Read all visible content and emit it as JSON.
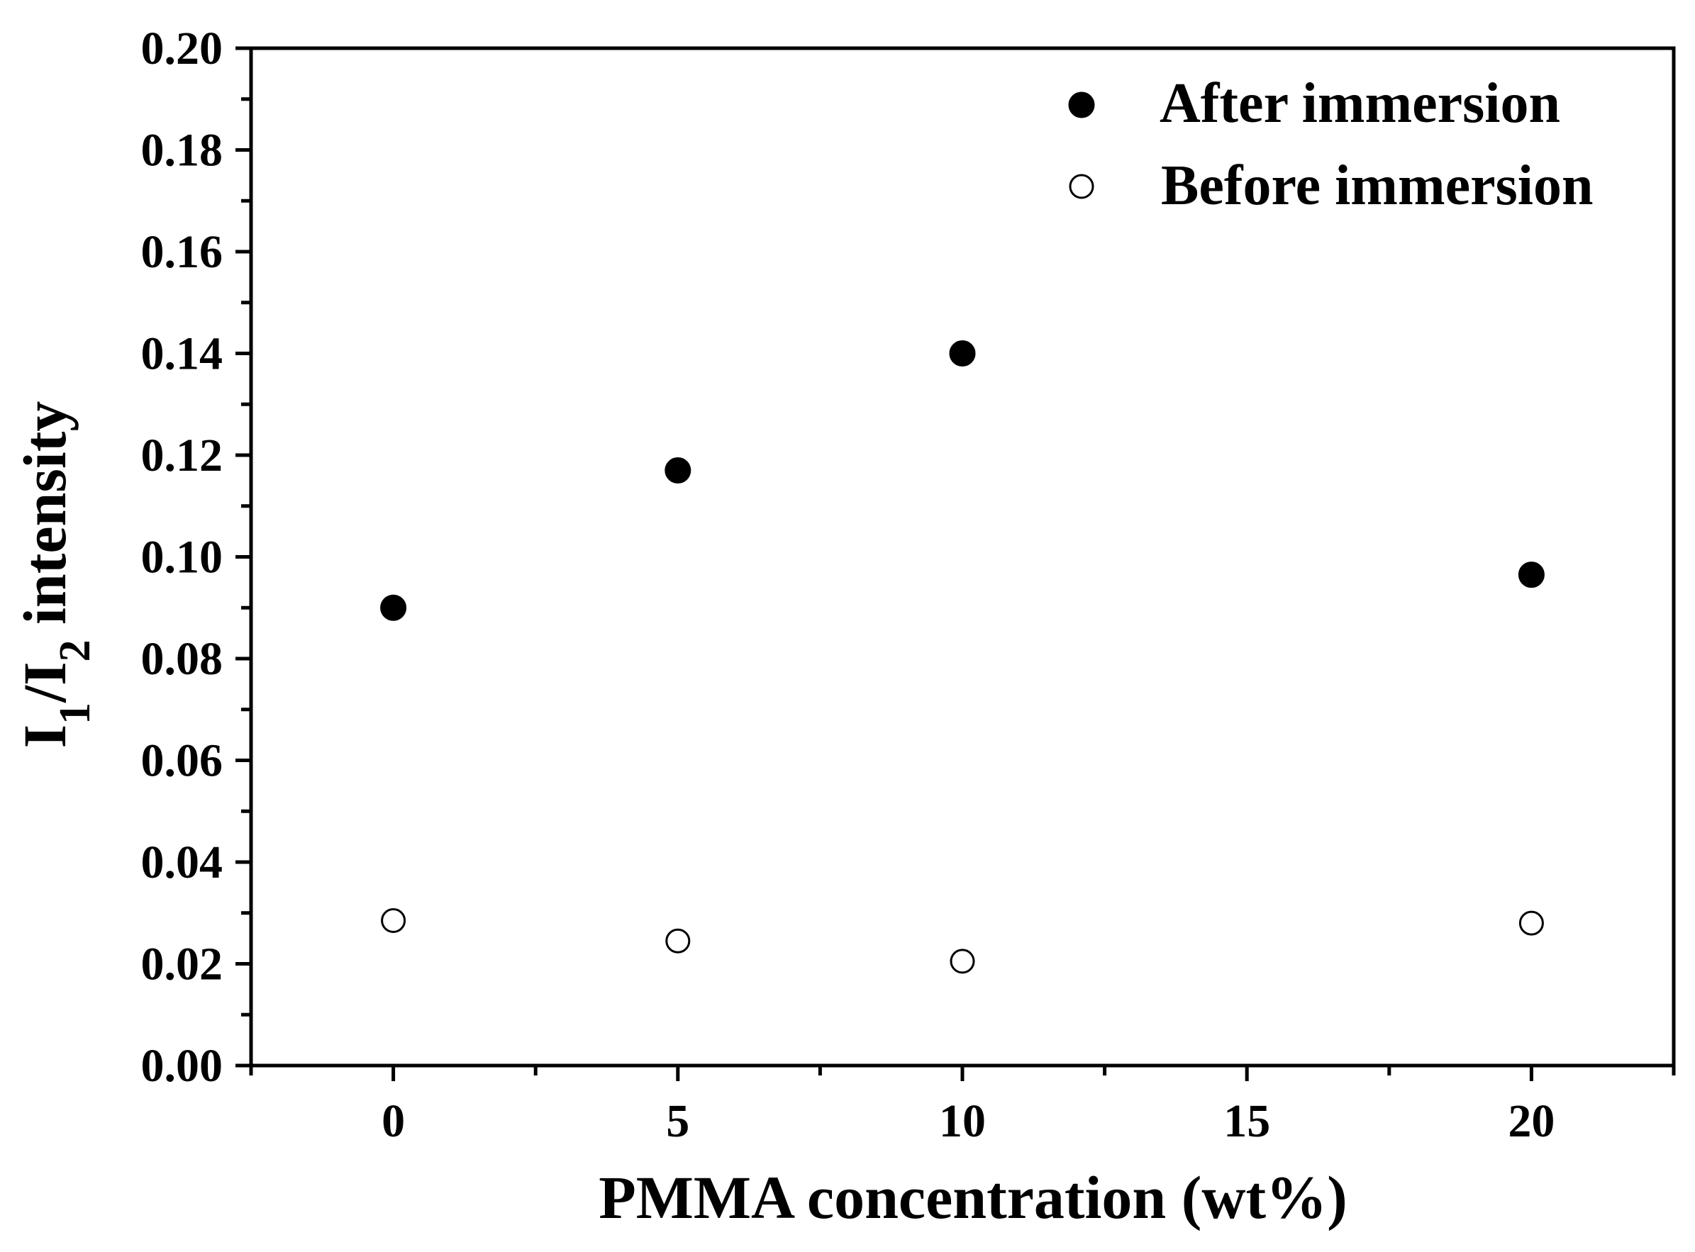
{
  "chart_data": {
    "type": "scatter",
    "title": "",
    "xlabel": "PMMA concentration (wt%)",
    "ylabel": {
      "prefix": "I",
      "sub1": "1",
      "slash": "/I",
      "sub2": "2",
      "suffix": " intensity"
    },
    "xlim": [
      -2.5,
      22.5
    ],
    "ylim": [
      0.0,
      0.2
    ],
    "x_ticks": [
      0,
      5,
      10,
      15,
      20
    ],
    "x_tick_labels": [
      "0",
      "5",
      "10",
      "15",
      "20"
    ],
    "x_minor_ticks": [
      -2.5,
      2.5,
      7.5,
      12.5,
      17.5,
      22.5
    ],
    "y_ticks": [
      0.0,
      0.02,
      0.04,
      0.06,
      0.08,
      0.1,
      0.12,
      0.14,
      0.16,
      0.18,
      0.2
    ],
    "y_tick_labels": [
      "0.00",
      "0.02",
      "0.04",
      "0.06",
      "0.08",
      "0.10",
      "0.12",
      "0.14",
      "0.16",
      "0.18",
      "0.20"
    ],
    "y_minor_ticks": [
      0.01,
      0.03,
      0.05,
      0.07,
      0.09,
      0.11,
      0.13,
      0.15,
      0.17,
      0.19
    ],
    "grid": false,
    "legend_position": "top-right",
    "series": [
      {
        "name": "After immersion",
        "marker": "filled-circle",
        "color": "#000000",
        "x": [
          0,
          5,
          10,
          20
        ],
        "y": [
          0.09,
          0.117,
          0.14,
          0.0965
        ]
      },
      {
        "name": "Before immersion",
        "marker": "open-circle",
        "color": "#000000",
        "x": [
          0,
          5,
          10,
          20
        ],
        "y": [
          0.0285,
          0.0245,
          0.0205,
          0.028
        ]
      }
    ]
  }
}
